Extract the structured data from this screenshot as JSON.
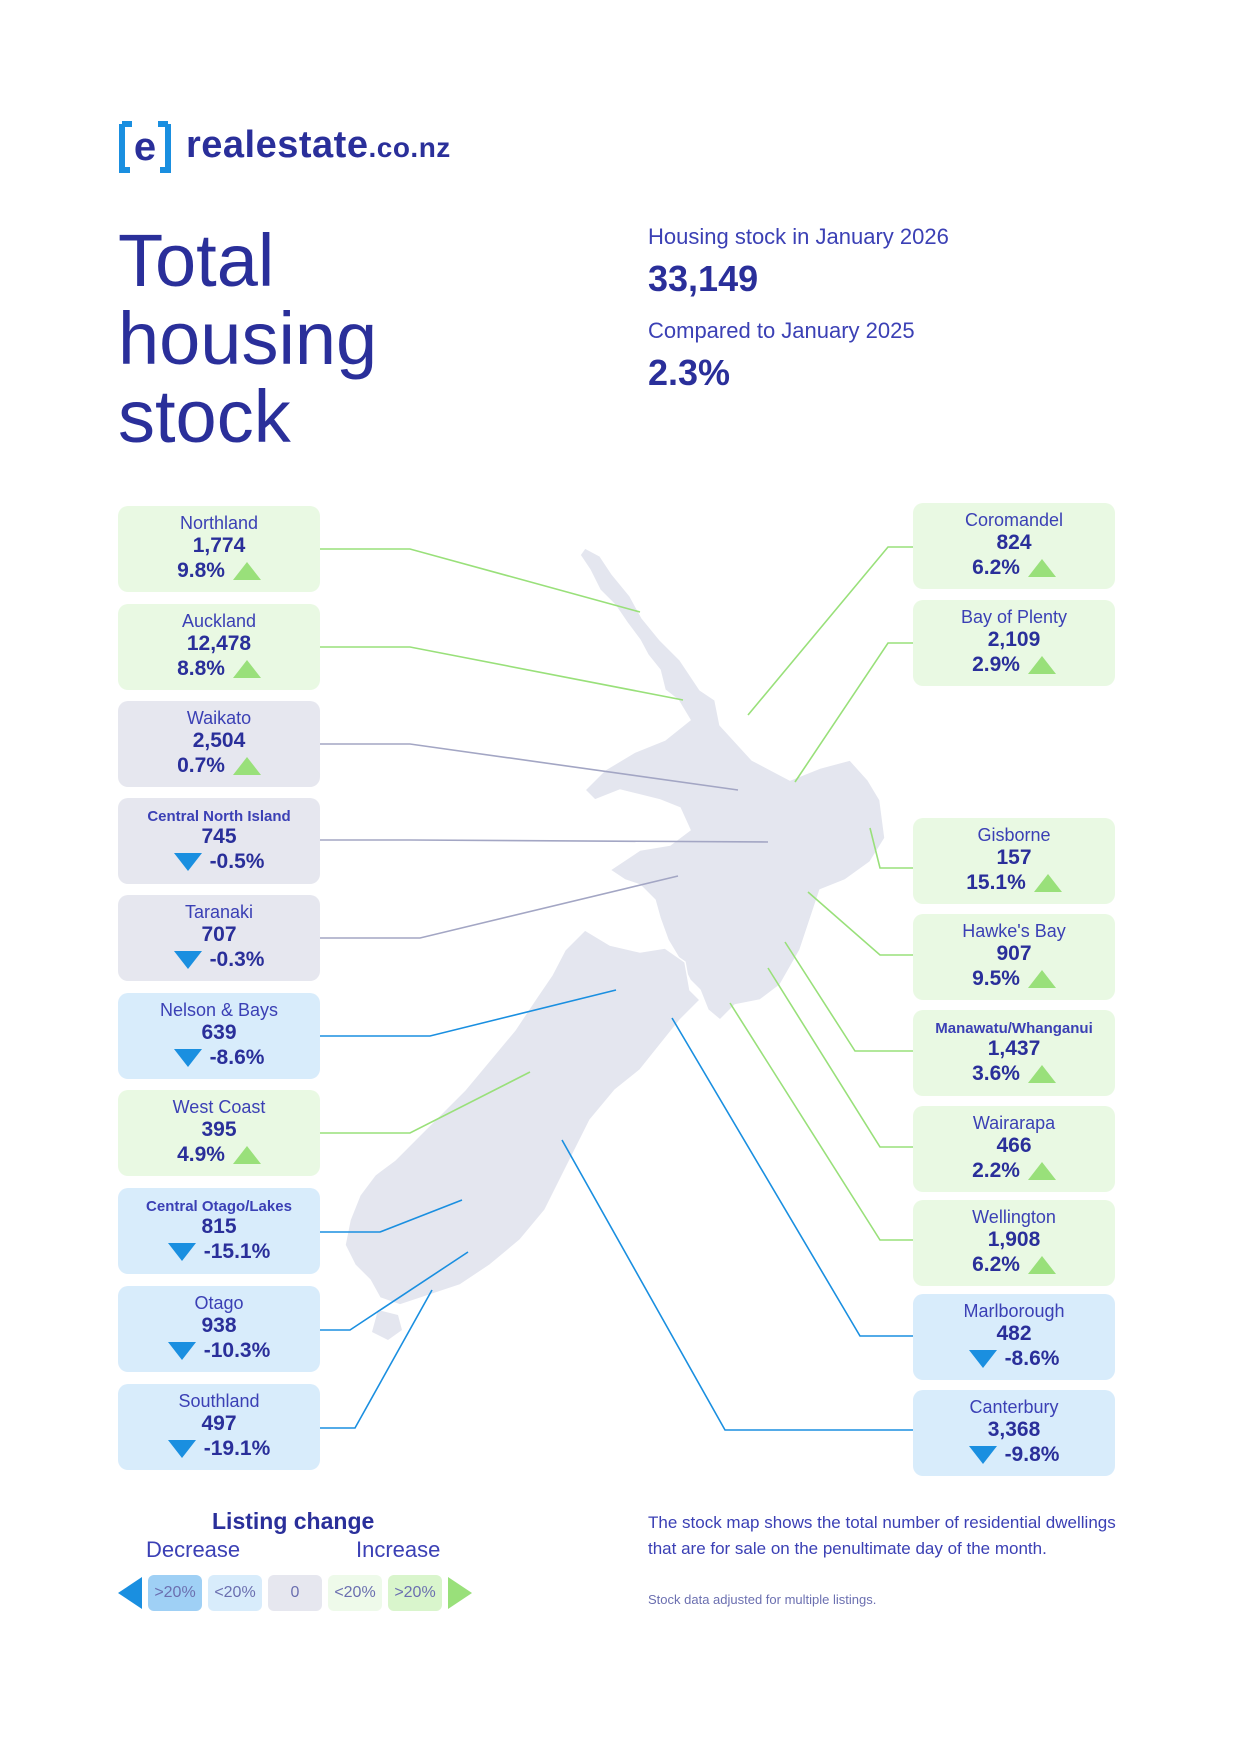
{
  "brand": {
    "logo_mark_letter": "e",
    "name": "realestate",
    "suffix": ".co.nz"
  },
  "title": {
    "line1": "Total",
    "line2": "housing",
    "line3": "stock"
  },
  "summary": {
    "stock_label": "Housing stock in January 2026",
    "stock_value": "33,149",
    "compare_label": "Compared to January 2025",
    "compare_value": "2.3%"
  },
  "colors": {
    "brand": "#2a2f9a",
    "increase_card": "#e9f9e3",
    "flat_card": "#e6e7ef",
    "decrease_card": "#d8ecfb",
    "increase_arrow": "#99e07a",
    "decrease_arrow": "#1a8fe0",
    "map_land": "#e4e6ef"
  },
  "regions_left": [
    {
      "name": "Northland",
      "count": "1,774",
      "change": "9.8%",
      "direction": "up",
      "tone": "pos"
    },
    {
      "name": "Auckland",
      "count": "12,478",
      "change": "8.8%",
      "direction": "up",
      "tone": "pos"
    },
    {
      "name": "Waikato",
      "count": "2,504",
      "change": "0.7%",
      "direction": "up",
      "tone": "flat"
    },
    {
      "name": "Central North Island",
      "count": "745",
      "change": "-0.5%",
      "direction": "down",
      "tone": "flat"
    },
    {
      "name": "Taranaki",
      "count": "707",
      "change": "-0.3%",
      "direction": "down",
      "tone": "flat"
    },
    {
      "name": "Nelson & Bays",
      "count": "639",
      "change": "-8.6%",
      "direction": "down",
      "tone": "neg"
    },
    {
      "name": "West Coast",
      "count": "395",
      "change": "4.9%",
      "direction": "up",
      "tone": "pos"
    },
    {
      "name": "Central Otago/Lakes",
      "count": "815",
      "change": "-15.1%",
      "direction": "down",
      "tone": "neg"
    },
    {
      "name": "Otago",
      "count": "938",
      "change": "-10.3%",
      "direction": "down",
      "tone": "neg"
    },
    {
      "name": "Southland",
      "count": "497",
      "change": "-19.1%",
      "direction": "down",
      "tone": "neg"
    }
  ],
  "regions_right": [
    {
      "name": "Coromandel",
      "count": "824",
      "change": "6.2%",
      "direction": "up",
      "tone": "pos"
    },
    {
      "name": "Bay of Plenty",
      "count": "2,109",
      "change": "2.9%",
      "direction": "up",
      "tone": "pos"
    },
    {
      "name": "Gisborne",
      "count": "157",
      "change": "15.1%",
      "direction": "up",
      "tone": "pos"
    },
    {
      "name": "Hawke's Bay",
      "count": "907",
      "change": "9.5%",
      "direction": "up",
      "tone": "pos"
    },
    {
      "name": "Manawatu/Whanganui",
      "count": "1,437",
      "change": "3.6%",
      "direction": "up",
      "tone": "pos"
    },
    {
      "name": "Wairarapa",
      "count": "466",
      "change": "2.2%",
      "direction": "up",
      "tone": "pos"
    },
    {
      "name": "Wellington",
      "count": "1,908",
      "change": "6.2%",
      "direction": "up",
      "tone": "pos"
    },
    {
      "name": "Marlborough",
      "count": "482",
      "change": "-8.6%",
      "direction": "down",
      "tone": "neg"
    },
    {
      "name": "Canterbury",
      "count": "3,368",
      "change": "-9.8%",
      "direction": "down",
      "tone": "neg"
    }
  ],
  "legend": {
    "title": "Listing change",
    "decrease_label": "Decrease",
    "increase_label": "Increase",
    "chips": [
      ">20%",
      "<20%",
      "0",
      "<20%",
      ">20%"
    ]
  },
  "footnote": {
    "main": "The stock map shows the total number of residential dwellings that are for sale on the penultimate day of the month.",
    "small": "Stock data adjusted for multiple listings."
  }
}
